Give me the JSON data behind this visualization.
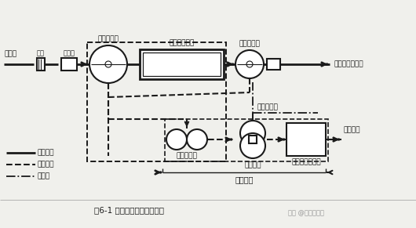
{
  "title": "图6-1 城市污水处理典型流程",
  "watermark": "知乎 @青蓝水处理",
  "legend_items": [
    {
      "label": "污水流程",
      "style": "solid"
    },
    {
      "label": "污泥流程",
      "style": "dashed"
    },
    {
      "label": "消化气",
      "style": "dashdot"
    }
  ],
  "bg_color": "#f0f0ec",
  "line_color": "#1a1a1a",
  "labels": {
    "raw_water": "原污水",
    "grating": "格栅",
    "grit": "沉砂池",
    "primary": "初次沉淀池",
    "bio": "生物处理设备",
    "secondary": "二次沉淀池",
    "discharge": "排放或三级处理",
    "sludge_thickener": "污泥浓缩池",
    "digestion": "污泥消化",
    "dewater": "脱水和干燥设备",
    "sludge_use": "污泥利用",
    "gas_use": "消化气利用",
    "sludge_process": "污泥处理"
  }
}
